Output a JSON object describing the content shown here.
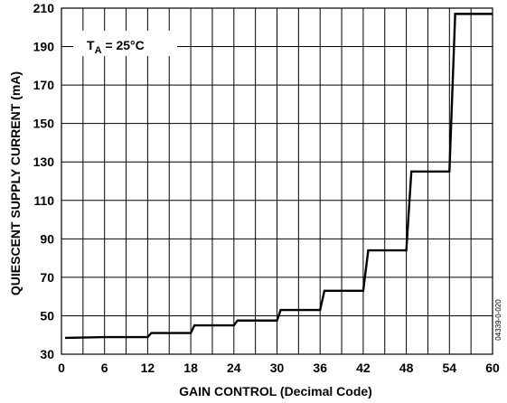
{
  "chart_data": {
    "type": "line",
    "title": "",
    "xlabel": "GAIN CONTROL (Decimal Code)",
    "ylabel": "QUIESCENT SUPPLY CURRENT (mA)",
    "annotation": {
      "main": "T",
      "sub": "A",
      "rest": " = 25°C"
    },
    "side_note": "04339-0-020",
    "xlim": [
      0,
      60
    ],
    "ylim": [
      30,
      210
    ],
    "xticks": [
      0,
      6,
      12,
      18,
      24,
      30,
      36,
      42,
      48,
      54,
      60
    ],
    "yticks": [
      30,
      50,
      70,
      90,
      110,
      130,
      150,
      170,
      190,
      210
    ],
    "x_gridlines": [
      0,
      3,
      6,
      9,
      12,
      15,
      18,
      21,
      24,
      27,
      30,
      33,
      36,
      39,
      42,
      45,
      48,
      51,
      54,
      57,
      60
    ],
    "y_gridlines": [
      30,
      50,
      70,
      90,
      110,
      130,
      150,
      170,
      190,
      210
    ],
    "grid": true,
    "legend": "none",
    "line_color": "#000000",
    "series": [
      {
        "values": [
          [
            0.5,
            38.5
          ],
          [
            6,
            38.9
          ],
          [
            12,
            38.9
          ],
          [
            12.5,
            41
          ],
          [
            18,
            41
          ],
          [
            18.5,
            45
          ],
          [
            24,
            45
          ],
          [
            24.5,
            47.5
          ],
          [
            30,
            47.5
          ],
          [
            30.5,
            53
          ],
          [
            36,
            53
          ],
          [
            36.6,
            63
          ],
          [
            42,
            63
          ],
          [
            42.7,
            84
          ],
          [
            48,
            84
          ],
          [
            48.7,
            125
          ],
          [
            54,
            125
          ],
          [
            54.8,
            207
          ],
          [
            60,
            207
          ]
        ]
      }
    ]
  }
}
